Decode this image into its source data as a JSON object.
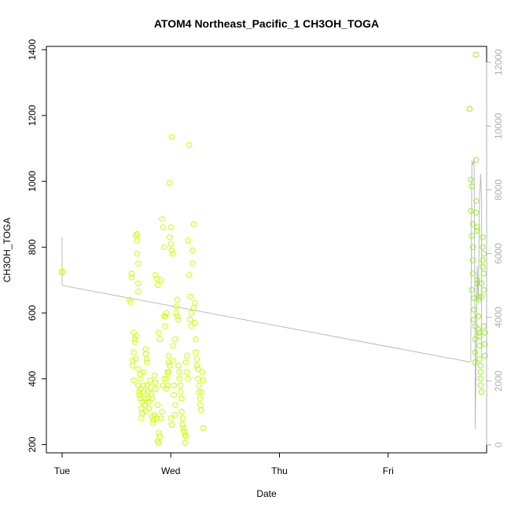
{
  "chart_data": {
    "type": "scatter",
    "title": "ATOM4 Northeast_Pacific_1 CH3OH_TOGA",
    "xlabel": "Date",
    "ylabel": "CH3OH_TOGA",
    "x_ticks": [
      "Tue",
      "Wed",
      "Thu",
      "Fri"
    ],
    "xlim": [
      0,
      3.95
    ],
    "ylim": [
      175,
      1410
    ],
    "y_ticks": [
      200,
      400,
      600,
      800,
      1000,
      1200,
      1400
    ],
    "y2lim": [
      -250,
      12500
    ],
    "y2_ticks": [
      0,
      2000,
      4000,
      6000,
      8000,
      10000,
      12000
    ],
    "grid": false,
    "colors": {
      "points_day1": "#ccff00",
      "points_day4": "#99ee33",
      "line": "#bbbbbb"
    },
    "series": [
      {
        "points": [
          [
            0.0,
            727
          ],
          [
            0.0,
            722
          ],
          [
            0.62,
            640
          ],
          [
            0.63,
            633
          ],
          [
            0.64,
            720
          ],
          [
            0.64,
            708
          ],
          [
            0.65,
            455
          ],
          [
            0.65,
            440
          ],
          [
            0.66,
            480
          ],
          [
            0.66,
            540
          ],
          [
            0.66,
            395
          ],
          [
            0.67,
            520
          ],
          [
            0.67,
            510
          ],
          [
            0.68,
            460
          ],
          [
            0.68,
            530
          ],
          [
            0.68,
            835
          ],
          [
            0.69,
            820
          ],
          [
            0.69,
            840
          ],
          [
            0.69,
            780
          ],
          [
            0.7,
            690
          ],
          [
            0.7,
            750
          ],
          [
            0.7,
            665
          ],
          [
            0.7,
            430
          ],
          [
            0.7,
            380
          ],
          [
            0.71,
            360
          ],
          [
            0.71,
            350
          ],
          [
            0.72,
            415
          ],
          [
            0.72,
            400
          ],
          [
            0.72,
            370
          ],
          [
            0.72,
            340
          ],
          [
            0.73,
            310
          ],
          [
            0.73,
            280
          ],
          [
            0.74,
            330
          ],
          [
            0.74,
            295
          ],
          [
            0.75,
            420
          ],
          [
            0.75,
            380
          ],
          [
            0.75,
            360
          ],
          [
            0.76,
            340
          ],
          [
            0.76,
            320
          ],
          [
            0.77,
            300
          ],
          [
            0.77,
            490
          ],
          [
            0.77,
            475
          ],
          [
            0.78,
            460
          ],
          [
            0.78,
            450
          ],
          [
            0.78,
            380
          ],
          [
            0.79,
            360
          ],
          [
            0.79,
            340
          ],
          [
            0.8,
            330
          ],
          [
            0.8,
            310
          ],
          [
            0.81,
            395
          ],
          [
            0.82,
            375
          ],
          [
            0.82,
            355
          ],
          [
            0.83,
            340
          ],
          [
            0.83,
            285
          ],
          [
            0.84,
            275
          ],
          [
            0.84,
            265
          ],
          [
            0.85,
            290
          ],
          [
            0.85,
            410
          ],
          [
            0.86,
            390
          ],
          [
            0.86,
            370
          ],
          [
            0.87,
            280
          ],
          [
            0.88,
            320
          ],
          [
            0.88,
            210
          ],
          [
            0.89,
            205
          ],
          [
            0.89,
            235
          ],
          [
            0.9,
            225
          ],
          [
            0.91,
            280
          ],
          [
            0.92,
            300
          ],
          [
            0.93,
            380
          ],
          [
            0.94,
            400
          ],
          [
            0.95,
            590
          ],
          [
            0.96,
            600
          ],
          [
            0.98,
            420
          ],
          [
            0.99,
            440
          ],
          [
            1.0,
            280
          ],
          [
            1.01,
            260
          ],
          [
            1.02,
            455
          ],
          [
            1.04,
            320
          ],
          [
            0.86,
            715
          ],
          [
            0.87,
            705
          ],
          [
            0.88,
            685
          ],
          [
            0.89,
            540
          ],
          [
            0.9,
            520
          ],
          [
            0.91,
            700
          ],
          [
            0.92,
            885
          ],
          [
            0.93,
            860
          ],
          [
            0.94,
            800
          ],
          [
            0.94,
            590
          ],
          [
            0.95,
            560
          ],
          [
            0.96,
            400
          ],
          [
            0.96,
            370
          ],
          [
            0.97,
            420
          ],
          [
            0.97,
            380
          ],
          [
            0.98,
            470
          ],
          [
            0.98,
            450
          ],
          [
            0.99,
            995
          ],
          [
            0.99,
            830
          ],
          [
            1.0,
            860
          ],
          [
            1.0,
            810
          ],
          [
            1.01,
            1135
          ],
          [
            1.01,
            790
          ],
          [
            1.02,
            780
          ],
          [
            1.02,
            500
          ],
          [
            1.03,
            350
          ],
          [
            1.03,
            380
          ],
          [
            1.04,
            290
          ],
          [
            1.04,
            520
          ],
          [
            1.05,
            620
          ],
          [
            1.05,
            600
          ],
          [
            1.06,
            590
          ],
          [
            1.06,
            640
          ],
          [
            1.07,
            580
          ],
          [
            1.07,
            440
          ],
          [
            1.08,
            420
          ],
          [
            1.08,
            400
          ],
          [
            1.09,
            380
          ],
          [
            1.09,
            360
          ],
          [
            1.1,
            340
          ],
          [
            1.1,
            300
          ],
          [
            1.11,
            280
          ],
          [
            1.11,
            260
          ],
          [
            1.12,
            250
          ],
          [
            1.12,
            240
          ],
          [
            1.13,
            230
          ],
          [
            1.13,
            205
          ],
          [
            1.14,
            225
          ],
          [
            1.14,
            450
          ],
          [
            1.15,
            470
          ],
          [
            1.15,
            420
          ],
          [
            1.16,
            400
          ],
          [
            1.16,
            820
          ],
          [
            1.17,
            1110
          ],
          [
            1.17,
            715
          ],
          [
            1.18,
            650
          ],
          [
            1.18,
            580
          ],
          [
            1.19,
            600
          ],
          [
            1.19,
            560
          ],
          [
            1.2,
            750
          ],
          [
            1.2,
            790
          ],
          [
            1.21,
            870
          ],
          [
            1.21,
            615
          ],
          [
            1.22,
            630
          ],
          [
            1.22,
            570
          ],
          [
            1.23,
            520
          ],
          [
            1.23,
            480
          ],
          [
            1.24,
            460
          ],
          [
            1.24,
            440
          ],
          [
            1.25,
            430
          ],
          [
            1.25,
            400
          ],
          [
            1.26,
            380
          ],
          [
            1.26,
            360
          ],
          [
            1.27,
            340
          ],
          [
            1.27,
            320
          ],
          [
            1.28,
            305
          ],
          [
            1.28,
            360
          ],
          [
            1.29,
            420
          ],
          [
            1.3,
            250
          ],
          [
            1.3,
            395
          ]
        ]
      },
      {
        "points": [
          [
            3.75,
            1220
          ],
          [
            3.76,
            910
          ],
          [
            3.76,
            1005
          ],
          [
            3.77,
            985
          ],
          [
            3.77,
            835
          ],
          [
            3.77,
            670
          ],
          [
            3.78,
            800
          ],
          [
            3.78,
            870
          ],
          [
            3.78,
            760
          ],
          [
            3.78,
            720
          ],
          [
            3.79,
            645
          ],
          [
            3.79,
            610
          ],
          [
            3.79,
            580
          ],
          [
            3.8,
            560
          ],
          [
            3.8,
            520
          ],
          [
            3.8,
            480
          ],
          [
            3.8,
            450
          ],
          [
            3.81,
            1385
          ],
          [
            3.81,
            1065
          ],
          [
            3.81,
            940
          ],
          [
            3.81,
            905
          ],
          [
            3.82,
            860
          ],
          [
            3.82,
            850
          ],
          [
            3.82,
            700
          ],
          [
            3.82,
            690
          ],
          [
            3.83,
            650
          ],
          [
            3.83,
            640
          ],
          [
            3.83,
            590
          ],
          [
            3.83,
            550
          ],
          [
            3.84,
            540
          ],
          [
            3.84,
            530
          ],
          [
            3.84,
            500
          ],
          [
            3.84,
            460
          ],
          [
            3.85,
            440
          ],
          [
            3.85,
            420
          ],
          [
            3.85,
            400
          ],
          [
            3.85,
            380
          ],
          [
            3.86,
            360
          ],
          [
            3.86,
            650
          ],
          [
            3.86,
            690
          ],
          [
            3.87,
            740
          ],
          [
            3.87,
            760
          ],
          [
            3.87,
            800
          ],
          [
            3.87,
            830
          ],
          [
            3.88,
            780
          ],
          [
            3.88,
            720
          ],
          [
            3.88,
            670
          ],
          [
            3.88,
            560
          ],
          [
            3.89,
            540
          ],
          [
            3.89,
            505
          ],
          [
            3.89,
            470
          ]
        ]
      }
    ],
    "line_series_right_axis": [
      [
        0.0,
        5400
      ],
      [
        0.0,
        6500
      ],
      [
        0.0,
        5000
      ],
      [
        3.75,
        2600
      ],
      [
        3.76,
        2600
      ],
      [
        3.77,
        8900
      ],
      [
        3.78,
        8800
      ],
      [
        3.79,
        9000
      ],
      [
        3.8,
        3000
      ],
      [
        3.8,
        500
      ],
      [
        3.81,
        2500
      ],
      [
        3.82,
        5600
      ],
      [
        3.83,
        4500
      ],
      [
        3.84,
        7500
      ],
      [
        3.85,
        8500
      ],
      [
        3.86,
        7800
      ],
      [
        3.86,
        2700
      ]
    ]
  }
}
